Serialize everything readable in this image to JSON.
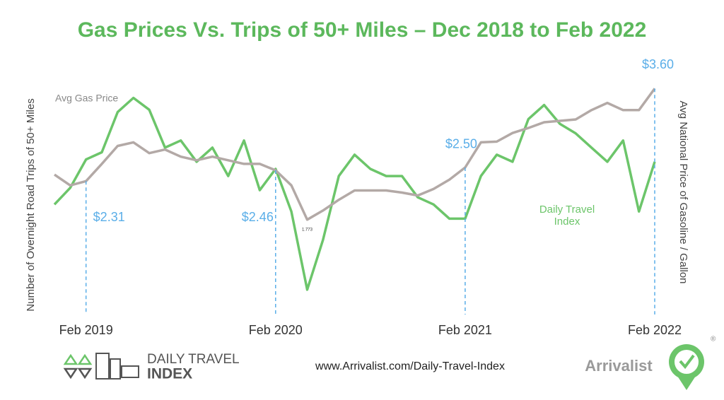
{
  "chart_data": {
    "type": "line",
    "title": "Gas Prices Vs. Trips of 50+ Miles – Dec 2018 to Feb 2022",
    "y_label": "Number of Overnight Road Trips of 50+ Miles",
    "y2_label": "Avg National Price of Gasoline / Gallon",
    "categories": [
      null,
      null,
      "Feb 2019",
      null,
      null,
      null,
      null,
      null,
      null,
      null,
      null,
      null,
      null,
      null,
      "Feb 2020",
      null,
      null,
      null,
      null,
      null,
      null,
      null,
      null,
      null,
      null,
      null,
      "Feb 2021",
      null,
      null,
      null,
      null,
      null,
      null,
      null,
      null,
      null,
      null,
      null,
      "Feb 2022"
    ],
    "ylim": [
      0,
      100
    ],
    "y2lim": [
      0.5,
      3.8
    ],
    "series": [
      {
        "name": "Daily Travel Index",
        "color": "#6cc56a",
        "values": [
          45,
          52,
          64,
          67,
          84,
          90,
          85,
          69,
          72,
          63,
          69,
          57,
          72,
          51,
          60,
          42,
          9,
          30,
          57,
          66,
          60,
          57,
          57,
          48,
          45,
          39,
          39,
          57,
          66,
          63,
          81,
          87,
          79,
          75,
          69,
          63,
          72,
          42,
          63
        ]
      },
      {
        "name": "Avg Gas Price",
        "color": "#b3a9a6",
        "axis": "y2",
        "values": [
          2.4,
          2.25,
          2.31,
          2.55,
          2.8,
          2.85,
          2.7,
          2.75,
          2.65,
          2.6,
          2.65,
          2.6,
          2.55,
          2.55,
          2.46,
          2.25,
          1.773,
          1.9,
          2.05,
          2.18,
          2.18,
          2.18,
          2.15,
          2.11,
          2.2,
          2.33,
          2.5,
          2.85,
          2.86,
          2.98,
          3.05,
          3.13,
          3.15,
          3.17,
          3.3,
          3.4,
          3.3,
          3.3,
          3.6
        ],
        "value_labels": [
          null,
          null,
          "$2.31",
          null,
          null,
          null,
          null,
          null,
          null,
          null,
          null,
          null,
          null,
          null,
          "$2.46",
          null,
          "1.773",
          null,
          null,
          null,
          null,
          null,
          null,
          null,
          null,
          null,
          "$2.50",
          null,
          null,
          null,
          null,
          null,
          null,
          null,
          null,
          null,
          null,
          null,
          "$3.60"
        ]
      }
    ]
  },
  "footer": {
    "logo_line1": "DAILY TRAVEL",
    "logo_line2": "INDEX",
    "url": "www.Arrivalist.com/Daily-Travel-Index",
    "brand": "Arrivalist",
    "registered": "®"
  }
}
